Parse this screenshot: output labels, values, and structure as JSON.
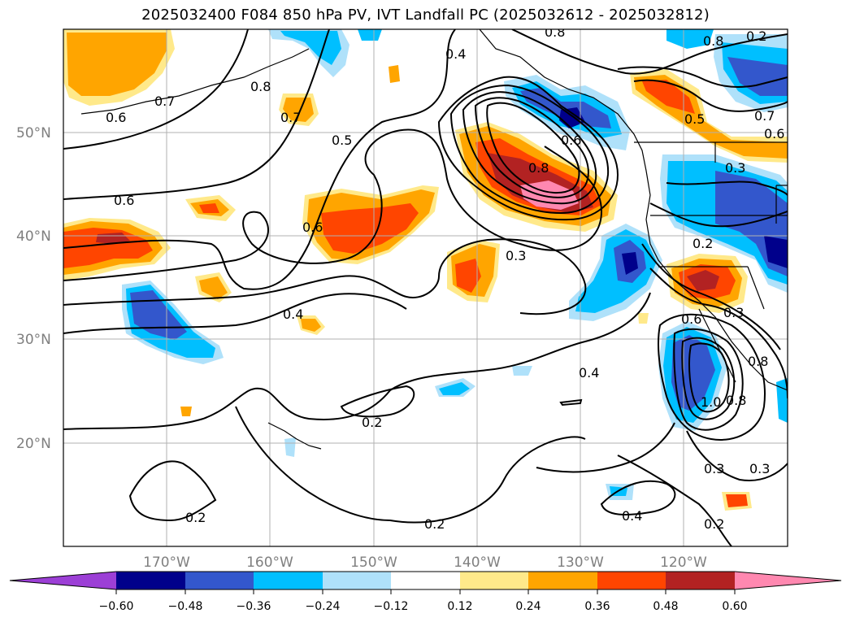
{
  "title": "2025032400 F084 850 hPa PV, IVT Landfall PC (2025032612 - 2025032812)",
  "lat_labels": [
    "50°N",
    "40°N",
    "30°N",
    "20°N"
  ],
  "lon_labels": [
    "170°W",
    "160°W",
    "150°W",
    "140°W",
    "130°W",
    "120°W"
  ],
  "contour_labels": [
    "0.4",
    "0.8",
    "0.7",
    "0.6",
    "0.5",
    "0.6",
    "0.6",
    "0.4",
    "0.3",
    "0.2",
    "0.4",
    "0.2",
    "0.2",
    "0.3",
    "0.4",
    "0.8",
    "0.5",
    "0.8",
    "0.3",
    "0.2",
    "0.6",
    "0.8",
    "0.3",
    "0.2",
    "0.8",
    "0.2",
    "0.7",
    "0.6",
    "0.7",
    "0.8",
    "0.3",
    "0.6",
    "1.0"
  ],
  "colorbar": {
    "tick_labels": [
      "−0.60",
      "−0.48",
      "−0.36",
      "−0.24",
      "−0.12",
      "0.12",
      "0.24",
      "0.36",
      "0.48",
      "0.60"
    ],
    "colors": [
      "#9c3fd6",
      "#00008b",
      "#3357cc",
      "#00bfff",
      "#afe1fa",
      "#ffffff",
      "#ffe98a",
      "#ffa500",
      "#ff4500",
      "#b22222",
      "#ff88b0"
    ]
  }
}
